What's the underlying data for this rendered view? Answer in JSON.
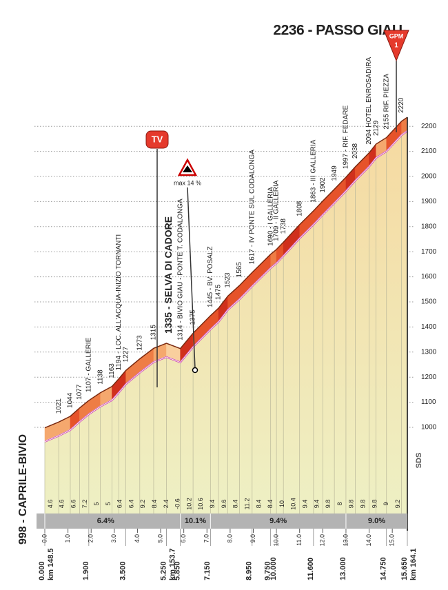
{
  "chart_data": {
    "type": "elevation-profile",
    "title": "2236 - PASSO GIAU",
    "annotations": {
      "gpm": "GPM",
      "category": "1",
      "tv": "TV",
      "max_gradient": "max 14 %",
      "sds": "SDS"
    },
    "x": [
      0,
      0.6,
      1.1,
      1.5,
      1.9,
      2.4,
      2.9,
      3.2,
      3.5,
      4.1,
      4.7,
      5.25,
      5.85,
      6.4,
      7.15,
      7.5,
      7.9,
      8.4,
      8.95,
      9.75,
      10.0,
      10.3,
      11.0,
      11.6,
      12.0,
      12.5,
      13.0,
      13.4,
      14.0,
      14.3,
      14.75,
      15.4,
      15.65
    ],
    "values": [
      998,
      1021,
      1044,
      1077,
      1107,
      1138,
      1163,
      1194,
      1227,
      1273,
      1315,
      1335,
      1314,
      1375,
      1445,
      1475,
      1523,
      1565,
      1617,
      1690,
      1709,
      1738,
      1808,
      1863,
      1902,
      1949,
      1997,
      2038,
      2094,
      2129,
      2155,
      2220,
      2236
    ],
    "value_labels": [
      "998 - CAPRILE-BIVIO",
      "1021",
      "1044",
      "1077",
      "1107 - GALLERIE",
      "1138",
      "1163",
      "1194 - LOC. ALL'ACQUA-INIZIO TORNANTI",
      "1227",
      "1273",
      "1315",
      "1335 - SELVA DI CADORE",
      "1314 - BIVIO GIAU - PONTE T. CODALONGA",
      "1375",
      "1445 - BV. POSALZ",
      "1475",
      "1523",
      "1565",
      "1617 - IV PONTE SUL CODALONGA",
      "1690 - I GALLERIA",
      "1709 - II GALLERIA",
      "1738",
      "1808",
      "1863 - III GALLERIA",
      "1902",
      "1949",
      "1997 - RIF. FEDARE",
      "2038",
      "2094 HOTEL ENROSADIRA",
      "2129",
      "2155 RIF. PIEZZA",
      "2220",
      null
    ],
    "ylim": [
      950,
      2250
    ],
    "yticks": [
      1000,
      1100,
      1200,
      1300,
      1400,
      1500,
      1600,
      1700,
      1800,
      1900,
      2000,
      2100,
      2200
    ],
    "xlim": [
      0,
      15.65
    ],
    "xticks": [
      {
        "value": 0,
        "label": "0.000"
      },
      {
        "value": 1.9,
        "label": "1.900"
      },
      {
        "value": 3.5,
        "label": "3.500"
      },
      {
        "value": 5.25,
        "label": "5.250"
      },
      {
        "value": 5.85,
        "label": "5.850"
      },
      {
        "value": 7.15,
        "label": "7.150"
      },
      {
        "value": 8.95,
        "label": "8.950"
      },
      {
        "value": 9.75,
        "label": "9.750"
      },
      {
        "value": 10.0,
        "label": "10.000"
      },
      {
        "value": 11.6,
        "label": "11.600"
      },
      {
        "value": 13.0,
        "label": "13.000"
      },
      {
        "value": 14.75,
        "label": "14.750"
      },
      {
        "value": 15.65,
        "label": "15.650"
      }
    ],
    "km_marks": [
      {
        "value": 0,
        "label": "0.0"
      },
      {
        "value": 1,
        "label": "1.0"
      },
      {
        "value": 2,
        "label": "2.0"
      },
      {
        "value": 3,
        "label": "3.0"
      },
      {
        "value": 4,
        "label": "4.0"
      },
      {
        "value": 5,
        "label": "5.0"
      },
      {
        "value": 6,
        "label": "6.0"
      },
      {
        "value": 7,
        "label": "7.0"
      },
      {
        "value": 8,
        "label": "8.0"
      },
      {
        "value": 9,
        "label": "9.0"
      },
      {
        "value": 10,
        "label": "10.0"
      },
      {
        "value": 11,
        "label": "11.0"
      },
      {
        "value": 12,
        "label": "12.0"
      },
      {
        "value": 13,
        "label": "13.0"
      },
      {
        "value": 14,
        "label": "14.0"
      },
      {
        "value": 15,
        "label": "15.0"
      }
    ],
    "race_km": [
      {
        "value": 0,
        "label": "km 148.5"
      },
      {
        "value": 5.25,
        "label": "km 153.7"
      },
      {
        "value": 15.65,
        "label": "km 164.1"
      }
    ],
    "gradients": [
      4.6,
      4.6,
      6.6,
      7.2,
      5.0,
      5.0,
      6.4,
      6.4,
      9.2,
      8.4,
      2.4,
      -0.6,
      10.2,
      10.6,
      9.4,
      9.6,
      8.4,
      11.2,
      8.4,
      8.4,
      10.0,
      10.4,
      9.4,
      9.4,
      9.8,
      8.0,
      9.8,
      9.8,
      9.8,
      9.0,
      9.2
    ],
    "sectors": [
      {
        "from": 0,
        "to": 5.25,
        "value": 6.4,
        "label": "6.4%"
      },
      {
        "from": 5.85,
        "to": 7.15,
        "value": 10.1,
        "label": "10.1%"
      },
      {
        "from": 7.15,
        "to": 13.0,
        "value": 9.4,
        "label": "9.4%"
      },
      {
        "from": 13.0,
        "to": 15.65,
        "value": 9.0,
        "label": "9.0%"
      }
    ]
  }
}
